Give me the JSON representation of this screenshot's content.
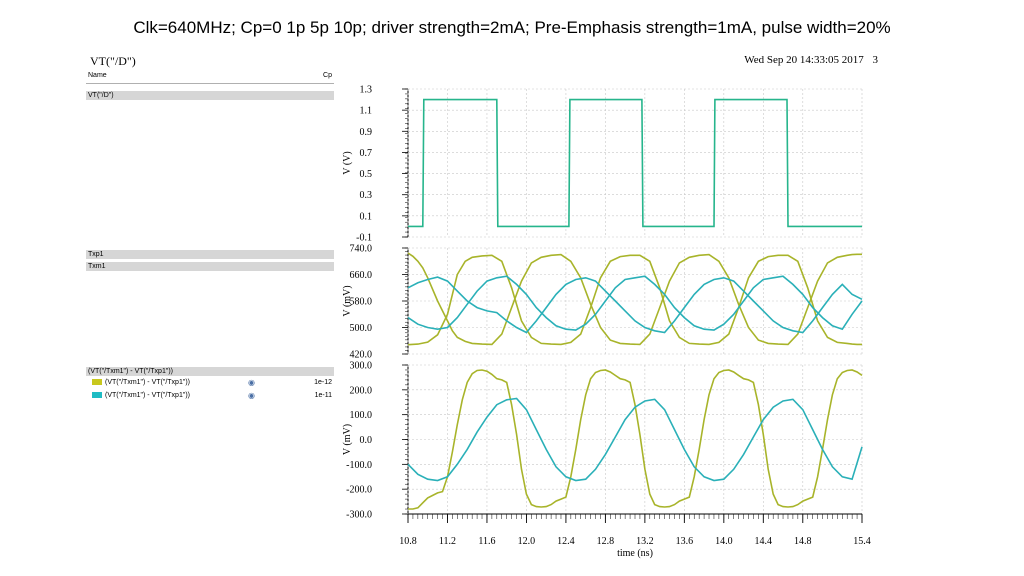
{
  "slide": {
    "title": "Clk=640MHz; Cp=0 1p 5p 10p; driver strength=2mA; Pre-Emphasis strength=1mA, pulse width=20%"
  },
  "window": {
    "title": "VT(\"/D\")",
    "timestamp": "Wed Sep 20 14:33:05 2017",
    "window_number": "3"
  },
  "legend": {
    "header_name": "Name",
    "header_param": "Cp",
    "strip1_label": "VT(\"/D\")",
    "strip2_label1": "Txp1",
    "strip2_label2": "Txm1",
    "strip3_label": "(VT(\"/Txm1\") - VT(\"/Txp1\"))",
    "strip3_items": [
      {
        "expr": "(VT(\"/Txm1\") - VT(\"/Txp1\"))",
        "cp": "1e-12",
        "color": "#c8c81e"
      },
      {
        "expr": "(VT(\"/Txm1\") - VT(\"/Txp1\"))",
        "cp": "1e-11",
        "color": "#1fbcc4"
      }
    ]
  },
  "colors": {
    "clock": "#26b58c",
    "yellow": "#a8b42a",
    "cyan": "#2ab0b8",
    "grid": "#c8c8c8"
  },
  "chart_data": [
    {
      "type": "line",
      "ylabel": "V (V)",
      "ylim": [
        -0.1,
        1.3
      ],
      "yticks": [
        "1.3",
        "1.1",
        "0.9",
        "0.7",
        "0.5",
        "0.3",
        "0.1",
        "-0.1"
      ],
      "ytick_values": [
        1.3,
        1.1,
        0.9,
        0.7,
        0.5,
        0.3,
        0.1,
        -0.1
      ],
      "series": [
        {
          "color": "#26b58c",
          "x": [
            10.8,
            10.95,
            10.96,
            10.97,
            11.7,
            11.71,
            11.72,
            12.43,
            12.44,
            12.45,
            13.17,
            13.18,
            13.19,
            13.9,
            13.91,
            13.92,
            14.64,
            14.65,
            14.66,
            15.4
          ],
          "y": [
            0.0,
            0.0,
            1.2,
            1.2,
            1.2,
            0.0,
            0.0,
            0.0,
            1.2,
            1.2,
            1.2,
            0.0,
            0.0,
            0.0,
            1.2,
            1.2,
            1.2,
            0.0,
            0.0,
            0.0
          ]
        }
      ]
    },
    {
      "type": "line",
      "ylabel": "V (mV)",
      "ylim": [
        420.0,
        740.0
      ],
      "yticks": [
        "740.0",
        "660.0",
        "580.0",
        "500.0",
        "420.0"
      ],
      "ytick_values": [
        740.0,
        660.0,
        580.0,
        500.0,
        420.0
      ],
      "series": [
        {
          "color": "#a8b42a",
          "x": [
            10.8,
            10.85,
            10.9,
            10.95,
            11.0,
            11.1,
            11.2,
            11.25,
            11.3,
            11.38,
            11.45,
            11.55,
            11.65,
            11.75,
            11.85,
            11.95,
            12.05,
            12.15,
            12.25,
            12.35,
            12.45,
            12.55,
            12.65,
            12.75,
            12.85,
            12.95,
            13.05,
            13.15,
            13.25,
            13.35,
            13.45,
            13.55,
            13.65,
            13.75,
            13.85,
            13.95,
            14.05,
            14.15,
            14.25,
            14.35,
            14.45,
            14.55,
            14.65,
            14.75,
            14.85,
            14.95,
            15.05,
            15.15,
            15.25,
            15.3,
            15.35,
            15.4
          ],
          "y": [
            725,
            715,
            700,
            680,
            650,
            580,
            520,
            490,
            470,
            458,
            452,
            450,
            449,
            480,
            560,
            640,
            695,
            712,
            718,
            720,
            700,
            650,
            570,
            500,
            462,
            452,
            450,
            449,
            480,
            560,
            640,
            695,
            712,
            718,
            720,
            700,
            650,
            570,
            500,
            462,
            452,
            450,
            449,
            480,
            560,
            640,
            695,
            712,
            718,
            720,
            721,
            721
          ]
        },
        {
          "color": "#a8b42a",
          "x": [
            10.8,
            10.9,
            11.0,
            11.1,
            11.2,
            11.25,
            11.3,
            11.38,
            11.45,
            11.55,
            11.65,
            11.75,
            11.85,
            11.95,
            12.05,
            12.15,
            12.25,
            12.35,
            12.45,
            12.55,
            12.65,
            12.75,
            12.85,
            12.95,
            13.05,
            13.15,
            13.25,
            13.35,
            13.45,
            13.55,
            13.65,
            13.75,
            13.85,
            13.95,
            14.05,
            14.15,
            14.25,
            14.35,
            14.45,
            14.55,
            14.65,
            14.75,
            14.85,
            14.95,
            15.05,
            15.15,
            15.25,
            15.3,
            15.35,
            15.4
          ],
          "y": [
            448,
            450,
            456,
            478,
            540,
            600,
            660,
            700,
            712,
            716,
            718,
            700,
            620,
            520,
            470,
            452,
            450,
            449,
            455,
            480,
            560,
            650,
            700,
            714,
            718,
            718,
            700,
            620,
            520,
            470,
            452,
            450,
            449,
            455,
            480,
            560,
            650,
            700,
            714,
            718,
            718,
            700,
            620,
            520,
            470,
            455,
            452,
            450,
            449,
            449
          ]
        },
        {
          "color": "#2ab0b8",
          "x": [
            10.8,
            10.9,
            11.0,
            11.1,
            11.2,
            11.3,
            11.4,
            11.5,
            11.6,
            11.7,
            11.8,
            11.9,
            12.0,
            12.1,
            12.2,
            12.3,
            12.4,
            12.5,
            12.6,
            12.7,
            12.8,
            12.9,
            13.0,
            13.1,
            13.2,
            13.3,
            13.4,
            13.5,
            13.6,
            13.7,
            13.8,
            13.9,
            14.0,
            14.1,
            14.2,
            14.3,
            14.4,
            14.5,
            14.6,
            14.7,
            14.8,
            14.9,
            15.0,
            15.1,
            15.2,
            15.3,
            15.4
          ],
          "y": [
            620,
            635,
            645,
            652,
            640,
            610,
            580,
            560,
            550,
            545,
            520,
            500,
            485,
            520,
            560,
            600,
            630,
            645,
            650,
            640,
            610,
            580,
            550,
            520,
            500,
            490,
            485,
            520,
            560,
            600,
            630,
            645,
            650,
            640,
            610,
            580,
            550,
            520,
            500,
            490,
            485,
            520,
            560,
            600,
            630,
            600,
            585
          ]
        },
        {
          "color": "#2ab0b8",
          "x": [
            10.8,
            10.9,
            11.0,
            11.1,
            11.2,
            11.3,
            11.4,
            11.5,
            11.6,
            11.7,
            11.8,
            11.9,
            12.0,
            12.1,
            12.2,
            12.3,
            12.4,
            12.5,
            12.6,
            12.7,
            12.8,
            12.9,
            13.0,
            13.1,
            13.2,
            13.3,
            13.4,
            13.5,
            13.6,
            13.7,
            13.8,
            13.9,
            14.0,
            14.1,
            14.2,
            14.3,
            14.4,
            14.5,
            14.6,
            14.7,
            14.8,
            14.9,
            15.0,
            15.1,
            15.2,
            15.3,
            15.4
          ],
          "y": [
            530,
            510,
            500,
            495,
            500,
            530,
            570,
            610,
            640,
            650,
            655,
            630,
            600,
            560,
            530,
            505,
            495,
            492,
            510,
            540,
            580,
            620,
            645,
            650,
            655,
            630,
            600,
            560,
            530,
            505,
            495,
            492,
            510,
            540,
            580,
            620,
            645,
            650,
            655,
            630,
            600,
            560,
            530,
            505,
            495,
            540,
            580
          ]
        }
      ]
    },
    {
      "type": "line",
      "xlabel": "time (ns)",
      "ylabel": "V (mV)",
      "xlim": [
        10.8,
        15.4
      ],
      "ylim": [
        -300.0,
        300.0
      ],
      "xticks": [
        "10.8",
        "11.2",
        "11.6",
        "12.0",
        "12.4",
        "12.8",
        "13.2",
        "13.6",
        "14.0",
        "14.4",
        "14.8",
        "15.4"
      ],
      "xtick_values": [
        10.8,
        11.2,
        11.6,
        12.0,
        12.4,
        12.8,
        13.2,
        13.6,
        14.0,
        14.4,
        14.8,
        15.4
      ],
      "yticks": [
        "300.0",
        "200.0",
        "100.0",
        "0.0",
        "-100.0",
        "-200.0",
        "-300.0"
      ],
      "ytick_values": [
        300,
        200,
        100,
        0,
        -100,
        -200,
        -300
      ],
      "series": [
        {
          "color": "#a8b42a",
          "x": [
            10.8,
            10.85,
            10.9,
            10.95,
            11.0,
            11.05,
            11.1,
            11.15,
            11.2,
            11.25,
            11.3,
            11.35,
            11.4,
            11.45,
            11.5,
            11.55,
            11.6,
            11.65,
            11.7,
            11.75,
            11.8,
            11.85,
            11.9,
            11.95,
            12.0,
            12.05,
            12.1,
            12.15,
            12.2,
            12.25,
            12.3,
            12.35,
            12.4,
            12.45,
            12.5,
            12.55,
            12.6,
            12.65,
            12.7,
            12.75,
            12.8,
            12.85,
            12.9,
            12.95,
            13.0,
            13.05,
            13.1,
            13.15,
            13.2,
            13.25,
            13.3,
            13.35,
            13.4,
            13.45,
            13.5,
            13.55,
            13.6,
            13.65,
            13.7,
            13.75,
            13.8,
            13.85,
            13.9,
            13.95,
            14.0,
            14.05,
            14.1,
            14.15,
            14.2,
            14.25,
            14.3,
            14.35,
            14.4,
            14.45,
            14.5,
            14.55,
            14.6,
            14.65,
            14.7,
            14.75,
            14.8,
            14.85,
            14.9,
            14.95,
            15.0,
            15.05,
            15.1,
            15.15,
            15.2,
            15.25,
            15.3,
            15.35,
            15.4
          ],
          "y": [
            -280,
            -280,
            -275,
            -255,
            -235,
            -225,
            -215,
            -210,
            -150,
            -50,
            60,
            160,
            230,
            265,
            278,
            280,
            275,
            262,
            245,
            240,
            230,
            140,
            20,
            -120,
            -220,
            -262,
            -270,
            -272,
            -270,
            -262,
            -248,
            -240,
            -232,
            -150,
            -40,
            80,
            180,
            245,
            270,
            278,
            280,
            272,
            258,
            245,
            240,
            230,
            140,
            20,
            -120,
            -220,
            -262,
            -270,
            -272,
            -270,
            -262,
            -248,
            -240,
            -232,
            -150,
            -40,
            80,
            180,
            245,
            270,
            278,
            280,
            272,
            258,
            245,
            240,
            230,
            140,
            20,
            -120,
            -220,
            -262,
            -270,
            -272,
            -270,
            -262,
            -248,
            -240,
            -232,
            -150,
            -40,
            80,
            180,
            245,
            270,
            278,
            280,
            272,
            258
          ]
        },
        {
          "color": "#2ab0b8",
          "x": [
            10.8,
            10.9,
            11.0,
            11.1,
            11.2,
            11.3,
            11.4,
            11.5,
            11.6,
            11.7,
            11.8,
            11.9,
            12.0,
            12.1,
            12.2,
            12.3,
            12.4,
            12.5,
            12.6,
            12.7,
            12.8,
            12.9,
            13.0,
            13.1,
            13.2,
            13.3,
            13.4,
            13.5,
            13.6,
            13.7,
            13.8,
            13.9,
            14.0,
            14.1,
            14.2,
            14.3,
            14.4,
            14.5,
            14.6,
            14.7,
            14.8,
            14.9,
            15.0,
            15.1,
            15.2,
            15.3,
            15.4
          ],
          "y": [
            -100,
            -140,
            -160,
            -165,
            -150,
            -100,
            -40,
            30,
            90,
            140,
            160,
            165,
            120,
            40,
            -40,
            -110,
            -150,
            -165,
            -160,
            -120,
            -60,
            10,
            80,
            130,
            155,
            162,
            120,
            40,
            -40,
            -110,
            -150,
            -165,
            -160,
            -120,
            -60,
            10,
            80,
            130,
            155,
            162,
            120,
            40,
            -40,
            -110,
            -150,
            -160,
            -30
          ]
        }
      ]
    }
  ]
}
